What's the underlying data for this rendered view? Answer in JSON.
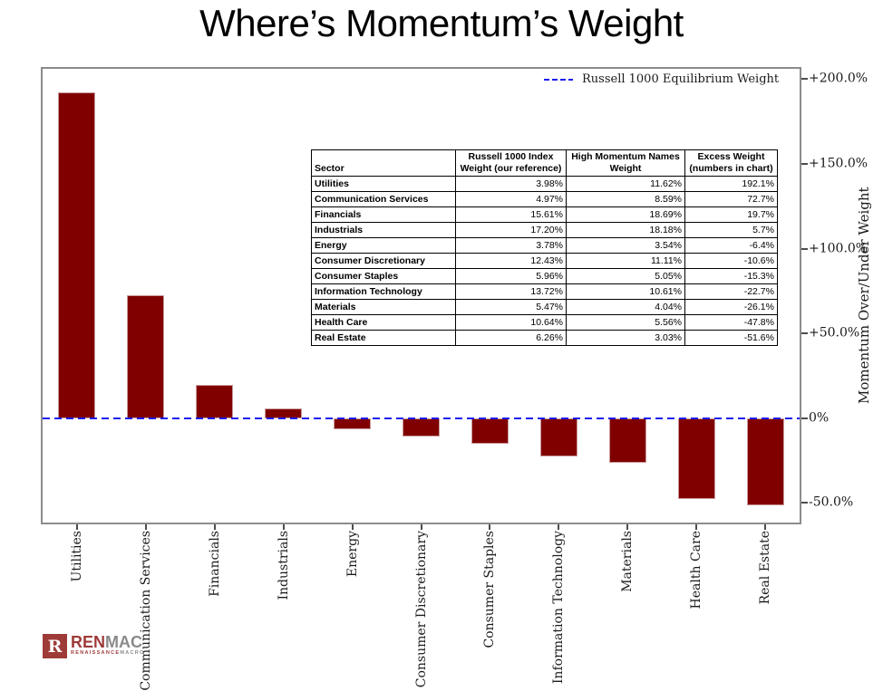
{
  "title": "Where’s Momentum’s Weight",
  "legend": {
    "label": "Russell 1000 Equilibrium Weight"
  },
  "y_axis": {
    "label": "Momentum Over/Under Weight",
    "ticks": [
      {
        "value": 200,
        "label": "+200.0%"
      },
      {
        "value": 150,
        "label": "+150.0%"
      },
      {
        "value": 100,
        "label": "+100.0%"
      },
      {
        "value": 50,
        "label": "+50.0%"
      },
      {
        "value": 0,
        "label": "0%"
      },
      {
        "value": -50,
        "label": "-50.0%"
      }
    ]
  },
  "chart_data": {
    "type": "bar",
    "title": "Where’s Momentum’s Weight",
    "categories": [
      "Utilities",
      "Communication Services",
      "Financials",
      "Industrials",
      "Energy",
      "Consumer Discretionary",
      "Consumer Staples",
      "Information Technology",
      "Materials",
      "Health Care",
      "Real Estate"
    ],
    "values": [
      192.1,
      72.7,
      19.7,
      5.7,
      -6.4,
      -10.6,
      -15.3,
      -22.7,
      -26.1,
      -47.8,
      -51.6
    ],
    "xlabel": "",
    "ylabel": "Momentum Over/Under Weight",
    "ylim": [
      -61.5,
      206
    ],
    "grid": false,
    "legend_position": "top-right",
    "bar_color": "#800000",
    "bar_edge_color": "#c99a9a",
    "zero_line_color": "#1c1cf0",
    "zero_line_label": "Russell 1000 Equilibrium Weight"
  },
  "table": {
    "headers": [
      "Sector",
      "Russell 1000 Index Weight (our reference)",
      "High Momentum Names Weight",
      "Excess Weight (numbers in chart)"
    ],
    "rows": [
      [
        "Utilities",
        "3.98%",
        "11.62%",
        "192.1%"
      ],
      [
        "Communication Services",
        "4.97%",
        "8.59%",
        "72.7%"
      ],
      [
        "Financials",
        "15.61%",
        "18.69%",
        "19.7%"
      ],
      [
        "Industrials",
        "17.20%",
        "18.18%",
        "5.7%"
      ],
      [
        "Energy",
        "3.78%",
        "3.54%",
        "-6.4%"
      ],
      [
        "Consumer Discretionary",
        "12.43%",
        "11.11%",
        "-10.6%"
      ],
      [
        "Consumer Staples",
        "5.96%",
        "5.05%",
        "-15.3%"
      ],
      [
        "Information Technology",
        "13.72%",
        "10.61%",
        "-22.7%"
      ],
      [
        "Materials",
        "5.47%",
        "4.04%",
        "-26.1%"
      ],
      [
        "Health Care",
        "10.64%",
        "5.56%",
        "-47.8%"
      ],
      [
        "Real Estate",
        "6.26%",
        "3.03%",
        "-51.6%"
      ]
    ]
  },
  "logo": {
    "mark": "R",
    "name_red": "REN",
    "name_gray": "MAC",
    "sub_red": "RENAISSANCE",
    "sub_gray": "MACRO",
    "red_color": "#9e3b39",
    "gray_color": "#8a8a8a"
  }
}
